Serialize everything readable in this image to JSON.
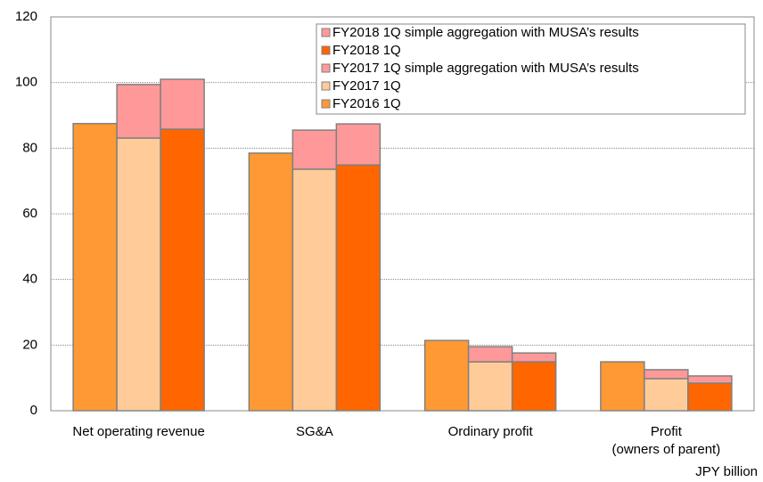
{
  "chart_data": {
    "type": "bar",
    "categories": [
      "Net operating revenue",
      "SG&A",
      "Ordinary profit",
      "Profit\n(owners of parent)"
    ],
    "series": [
      {
        "name": "FY2018 1Q simple aggregation with MUSA’s results",
        "color": "#ff9999",
        "bar": 2,
        "values": [
          15.2,
          12.5,
          2.7,
          2.2
        ]
      },
      {
        "name": "FY2018 1Q",
        "color": "#ff6600",
        "bar": 2,
        "values": [
          85.8,
          74.9,
          14.9,
          8.4
        ]
      },
      {
        "name": "FY2017 1Q simple aggregation with MUSA’s results",
        "color": "#ff9999",
        "bar": 1,
        "values": [
          16.3,
          11.9,
          4.6,
          2.7
        ]
      },
      {
        "name": "FY2017 1Q",
        "color": "#ffcc99",
        "bar": 1,
        "values": [
          83.1,
          73.6,
          14.9,
          9.8
        ]
      },
      {
        "name": "FY2016 1Q",
        "color": "#ff9933",
        "bar": 0,
        "values": [
          87.5,
          78.5,
          21.4,
          14.9
        ]
      }
    ],
    "ylabel": "JPY billion",
    "ylim": [
      0,
      120
    ],
    "yticks": [
      0,
      20,
      40,
      60,
      80,
      100,
      120
    ],
    "grid": true
  }
}
